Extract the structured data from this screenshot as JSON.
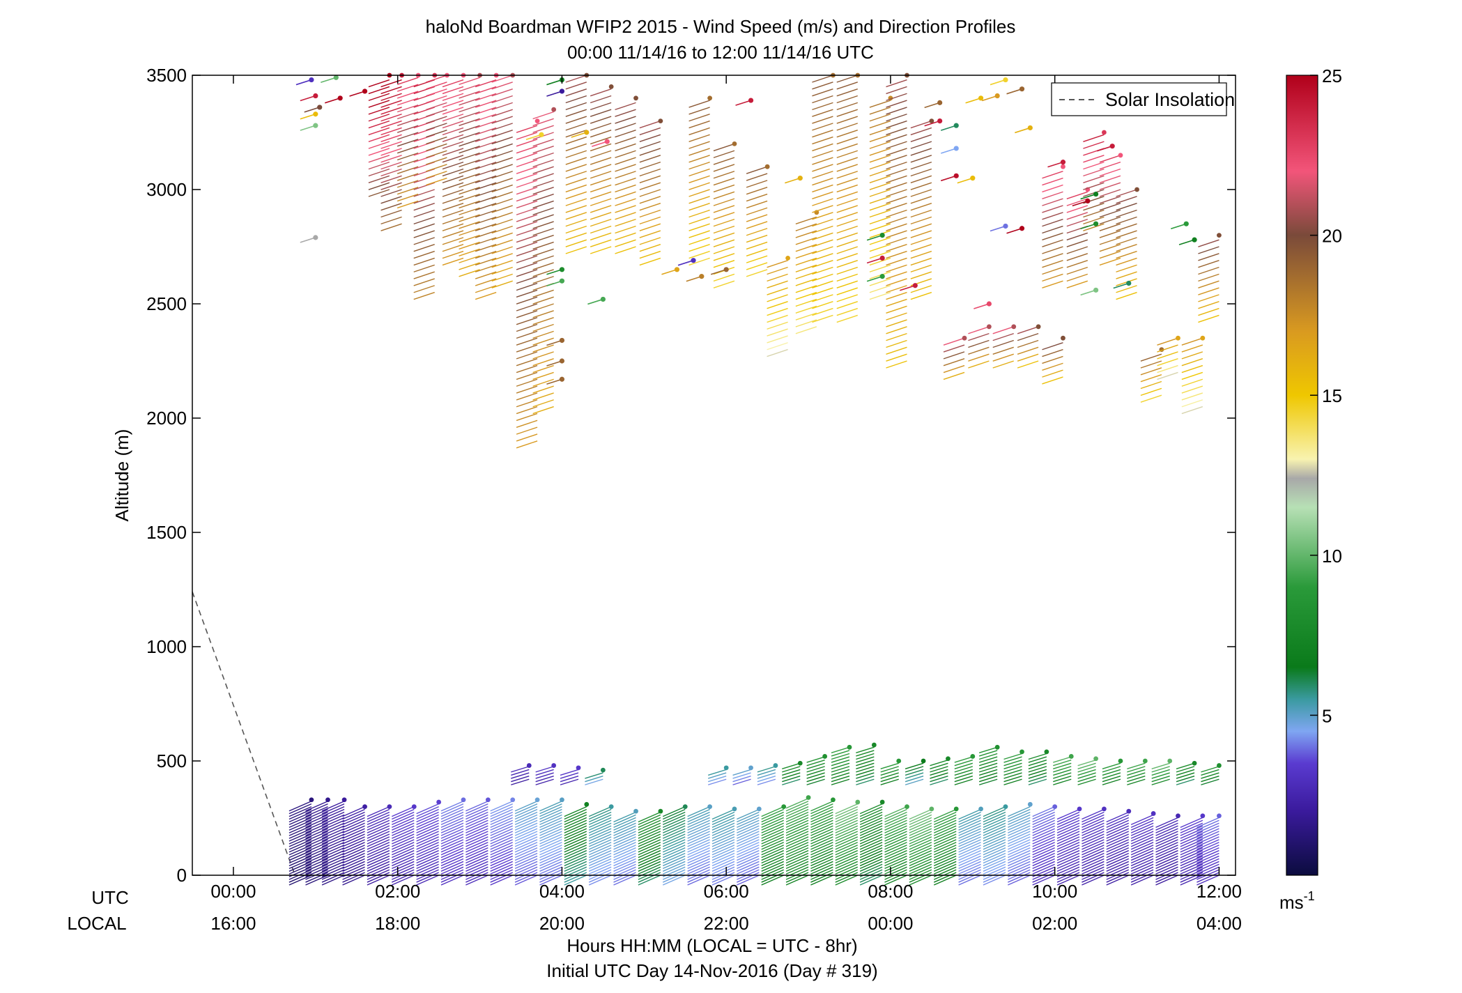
{
  "chart_data": {
    "type": "wind-barb-profile",
    "title": "haloNd Boardman WFIP2 2015 - Wind Speed (m/s) and Direction Profiles",
    "subtitle": "00:00 11/14/16 to 12:00 11/14/16  UTC",
    "ylabel": "Altitude (m)",
    "xlabel": "Hours HH:MM  (LOCAL = UTC - 8hr)",
    "xlabel2": "Initial UTC Day 14-Nov-2016 (Day # 319)",
    "utc_row_label": "UTC",
    "local_row_label": "LOCAL",
    "xlim_hours": [
      -0.5,
      12.2
    ],
    "ylim": [
      0,
      3500
    ],
    "yticks": [
      0,
      500,
      1000,
      1500,
      2000,
      2500,
      3000,
      3500
    ],
    "xticks_hours": [
      0,
      2,
      4,
      6,
      8,
      10,
      12
    ],
    "xtick_labels_utc": [
      "00:00",
      "02:00",
      "04:00",
      "06:00",
      "08:00",
      "10:00",
      "12:00"
    ],
    "xtick_labels_local": [
      "16:00",
      "18:00",
      "20:00",
      "22:00",
      "00:00",
      "02:00",
      "04:00"
    ],
    "legend": [
      {
        "name": "Solar Insolation",
        "style": "dashed",
        "color": "#555555"
      }
    ],
    "legend_placement": "top-right",
    "solar_insolation": {
      "x_hours": [
        -0.5,
        0.75
      ],
      "altitude": [
        1240,
        0
      ]
    },
    "colorbar": {
      "min": 0,
      "max": 25,
      "ticks": [
        5,
        10,
        15,
        20,
        25
      ],
      "unit": "ms",
      "unit_exponent": "-1",
      "stops": [
        {
          "v": 0,
          "color": "#0b0c3e"
        },
        {
          "v": 2,
          "color": "#3a1a9c"
        },
        {
          "v": 3.5,
          "color": "#5a3bd0"
        },
        {
          "v": 4.5,
          "color": "#7fa6f2"
        },
        {
          "v": 5.5,
          "color": "#3a9aa0"
        },
        {
          "v": 6.5,
          "color": "#0a7a1a"
        },
        {
          "v": 9,
          "color": "#2a9a3a"
        },
        {
          "v": 11.5,
          "color": "#b7e0b5"
        },
        {
          "v": 12.4,
          "color": "#a8a8a8"
        },
        {
          "v": 13,
          "color": "#f8f3b0"
        },
        {
          "v": 15,
          "color": "#efc700"
        },
        {
          "v": 17,
          "color": "#d99a20"
        },
        {
          "v": 20,
          "color": "#7a4a3a"
        },
        {
          "v": 22,
          "color": "#f2557a"
        },
        {
          "v": 25,
          "color": "#b0001a"
        }
      ]
    },
    "upper_profiles": [
      {
        "t": 1.9,
        "bottom": 3000,
        "top": 3500,
        "speed": 23
      },
      {
        "t": 2.05,
        "bottom": 2850,
        "top": 3500,
        "speed": 22
      },
      {
        "t": 2.25,
        "bottom": 2950,
        "top": 3500,
        "speed": 20
      },
      {
        "t": 2.45,
        "bottom": 2550,
        "top": 3500,
        "speed": 21
      },
      {
        "t": 2.6,
        "bottom": 3050,
        "top": 3500,
        "speed": 20
      },
      {
        "t": 2.8,
        "bottom": 2700,
        "top": 3500,
        "speed": 20
      },
      {
        "t": 3.0,
        "bottom": 2650,
        "top": 3500,
        "speed": 19
      },
      {
        "t": 3.2,
        "bottom": 2550,
        "top": 3500,
        "speed": 20
      },
      {
        "t": 3.4,
        "bottom": 2600,
        "top": 3500,
        "speed": 19
      },
      {
        "t": 3.7,
        "bottom": 1900,
        "top": 3300,
        "speed": 20
      },
      {
        "t": 3.9,
        "bottom": 2050,
        "top": 3350,
        "speed": 19
      },
      {
        "t": 4.3,
        "bottom": 2750,
        "top": 3500,
        "speed": 18
      },
      {
        "t": 4.6,
        "bottom": 2750,
        "top": 3450,
        "speed": 18
      },
      {
        "t": 4.9,
        "bottom": 2750,
        "top": 3400,
        "speed": 18
      },
      {
        "t": 5.2,
        "bottom": 2700,
        "top": 3300,
        "speed": 18
      },
      {
        "t": 5.8,
        "bottom": 2700,
        "top": 3400,
        "speed": 17
      },
      {
        "t": 6.1,
        "bottom": 2600,
        "top": 3200,
        "speed": 17
      },
      {
        "t": 6.5,
        "bottom": 2650,
        "top": 3100,
        "speed": 17
      },
      {
        "t": 6.75,
        "bottom": 2300,
        "top": 2700,
        "speed": 15
      },
      {
        "t": 7.1,
        "bottom": 2400,
        "top": 2900,
        "speed": 16
      },
      {
        "t": 7.3,
        "bottom": 2450,
        "top": 3500,
        "speed": 17
      },
      {
        "t": 7.6,
        "bottom": 2450,
        "top": 3500,
        "speed": 17
      },
      {
        "t": 8.0,
        "bottom": 2550,
        "top": 3400,
        "speed": 16
      },
      {
        "t": 8.2,
        "bottom": 2250,
        "top": 3500,
        "speed": 18
      },
      {
        "t": 8.5,
        "bottom": 2550,
        "top": 3300,
        "speed": 18
      },
      {
        "t": 8.9,
        "bottom": 2200,
        "top": 2350,
        "speed": 19
      },
      {
        "t": 9.2,
        "bottom": 2250,
        "top": 2400,
        "speed": 19
      },
      {
        "t": 9.5,
        "bottom": 2250,
        "top": 2400,
        "speed": 19
      },
      {
        "t": 9.8,
        "bottom": 2250,
        "top": 2400,
        "speed": 18
      },
      {
        "t": 10.1,
        "bottom": 2180,
        "top": 2350,
        "speed": 18
      },
      {
        "t": 10.1,
        "bottom": 2600,
        "top": 3100,
        "speed": 20
      },
      {
        "t": 10.4,
        "bottom": 2600,
        "top": 3000,
        "speed": 20
      },
      {
        "t": 10.6,
        "bottom": 2850,
        "top": 3250,
        "speed": 21
      },
      {
        "t": 10.8,
        "bottom": 2700,
        "top": 3150,
        "speed": 20
      },
      {
        "t": 11.0,
        "bottom": 2550,
        "top": 3000,
        "speed": 18
      },
      {
        "t": 11.3,
        "bottom": 2100,
        "top": 2300,
        "speed": 17
      },
      {
        "t": 11.5,
        "bottom": 2200,
        "top": 2350,
        "speed": 15
      },
      {
        "t": 11.8,
        "bottom": 2050,
        "top": 2350,
        "speed": 15
      },
      {
        "t": 12.0,
        "bottom": 2450,
        "top": 2800,
        "speed": 18
      }
    ],
    "lower_profiles": [
      {
        "t": 0.95,
        "bottom": 0,
        "top": 330,
        "speed": 1.2
      },
      {
        "t": 1.15,
        "bottom": 0,
        "top": 330,
        "speed": 1.5
      },
      {
        "t": 1.35,
        "bottom": 0,
        "top": 330,
        "speed": 1.8
      },
      {
        "t": 1.6,
        "bottom": 0,
        "top": 300,
        "speed": 2.0
      },
      {
        "t": 1.9,
        "bottom": 0,
        "top": 300,
        "speed": 2.5
      },
      {
        "t": 2.2,
        "bottom": 0,
        "top": 300,
        "speed": 3.0
      },
      {
        "t": 2.5,
        "bottom": 0,
        "top": 320,
        "speed": 3.2
      },
      {
        "t": 2.8,
        "bottom": 0,
        "top": 330,
        "speed": 3.6
      },
      {
        "t": 3.1,
        "bottom": 0,
        "top": 330,
        "speed": 3.4
      },
      {
        "t": 3.4,
        "bottom": 0,
        "top": 330,
        "speed": 3.8
      },
      {
        "t": 3.7,
        "bottom": 0,
        "top": 330,
        "speed": 4.4
      },
      {
        "t": 4.0,
        "bottom": 0,
        "top": 330,
        "speed": 4.6
      },
      {
        "t": 4.3,
        "bottom": 0,
        "top": 310,
        "speed": 6.5
      },
      {
        "t": 4.6,
        "bottom": 0,
        "top": 300,
        "speed": 5.0
      },
      {
        "t": 4.9,
        "bottom": 0,
        "top": 280,
        "speed": 4.7
      },
      {
        "t": 5.2,
        "bottom": 0,
        "top": 280,
        "speed": 7.0
      },
      {
        "t": 5.5,
        "bottom": 0,
        "top": 300,
        "speed": 5.5
      },
      {
        "t": 5.8,
        "bottom": 0,
        "top": 300,
        "speed": 4.6
      },
      {
        "t": 6.1,
        "bottom": 0,
        "top": 290,
        "speed": 4.8
      },
      {
        "t": 6.4,
        "bottom": 0,
        "top": 290,
        "speed": 4.5
      },
      {
        "t": 6.7,
        "bottom": 0,
        "top": 300,
        "speed": 8.0
      },
      {
        "t": 7.0,
        "bottom": 0,
        "top": 340,
        "speed": 8.5
      },
      {
        "t": 7.3,
        "bottom": 0,
        "top": 330,
        "speed": 8.0
      },
      {
        "t": 7.6,
        "bottom": 0,
        "top": 320,
        "speed": 9.0
      },
      {
        "t": 7.9,
        "bottom": 0,
        "top": 320,
        "speed": 7.0
      },
      {
        "t": 8.2,
        "bottom": 0,
        "top": 300,
        "speed": 8.5
      },
      {
        "t": 8.5,
        "bottom": 0,
        "top": 290,
        "speed": 9.0
      },
      {
        "t": 8.8,
        "bottom": 0,
        "top": 290,
        "speed": 8.0
      },
      {
        "t": 9.1,
        "bottom": 0,
        "top": 290,
        "speed": 4.7
      },
      {
        "t": 9.4,
        "bottom": 0,
        "top": 300,
        "speed": 5.0
      },
      {
        "t": 9.7,
        "bottom": 0,
        "top": 310,
        "speed": 4.5
      },
      {
        "t": 10.0,
        "bottom": 0,
        "top": 300,
        "speed": 3.5
      },
      {
        "t": 10.3,
        "bottom": 0,
        "top": 290,
        "speed": 3.0
      },
      {
        "t": 10.6,
        "bottom": 0,
        "top": 290,
        "speed": 2.8
      },
      {
        "t": 10.9,
        "bottom": 0,
        "top": 280,
        "speed": 2.6
      },
      {
        "t": 11.2,
        "bottom": 0,
        "top": 270,
        "speed": 2.8
      },
      {
        "t": 11.5,
        "bottom": 0,
        "top": 260,
        "speed": 2.4
      },
      {
        "t": 11.8,
        "bottom": 0,
        "top": 260,
        "speed": 3.0
      },
      {
        "t": 12.0,
        "bottom": 0,
        "top": 260,
        "speed": 3.5
      }
    ],
    "mid_profiles": [
      {
        "t": 3.6,
        "bottom": 420,
        "top": 480,
        "speed": 2.5
      },
      {
        "t": 3.9,
        "bottom": 420,
        "top": 480,
        "speed": 2.8
      },
      {
        "t": 4.2,
        "bottom": 420,
        "top": 470,
        "speed": 3.0
      },
      {
        "t": 4.5,
        "bottom": 420,
        "top": 460,
        "speed": 5.5
      },
      {
        "t": 6.0,
        "bottom": 420,
        "top": 470,
        "speed": 5.0
      },
      {
        "t": 6.3,
        "bottom": 420,
        "top": 470,
        "speed": 4.5
      },
      {
        "t": 6.6,
        "bottom": 420,
        "top": 480,
        "speed": 5.0
      },
      {
        "t": 6.9,
        "bottom": 420,
        "top": 490,
        "speed": 7.0
      },
      {
        "t": 7.2,
        "bottom": 420,
        "top": 520,
        "speed": 7.5
      },
      {
        "t": 7.5,
        "bottom": 420,
        "top": 560,
        "speed": 8.0
      },
      {
        "t": 7.8,
        "bottom": 420,
        "top": 570,
        "speed": 7.0
      },
      {
        "t": 8.1,
        "bottom": 420,
        "top": 500,
        "speed": 8.0
      },
      {
        "t": 8.4,
        "bottom": 420,
        "top": 500,
        "speed": 6.0
      },
      {
        "t": 8.7,
        "bottom": 420,
        "top": 510,
        "speed": 7.0
      },
      {
        "t": 9.0,
        "bottom": 420,
        "top": 520,
        "speed": 8.0
      },
      {
        "t": 9.3,
        "bottom": 420,
        "top": 560,
        "speed": 7.5
      },
      {
        "t": 9.6,
        "bottom": 420,
        "top": 540,
        "speed": 8.0
      },
      {
        "t": 9.9,
        "bottom": 420,
        "top": 540,
        "speed": 7.0
      },
      {
        "t": 10.2,
        "bottom": 420,
        "top": 520,
        "speed": 8.5
      },
      {
        "t": 10.5,
        "bottom": 420,
        "top": 510,
        "speed": 9.0
      },
      {
        "t": 10.8,
        "bottom": 420,
        "top": 500,
        "speed": 8.0
      },
      {
        "t": 11.1,
        "bottom": 420,
        "top": 500,
        "speed": 8.5
      },
      {
        "t": 11.4,
        "bottom": 420,
        "top": 500,
        "speed": 9.0
      },
      {
        "t": 11.7,
        "bottom": 420,
        "top": 490,
        "speed": 7.0
      },
      {
        "t": 12.0,
        "bottom": 420,
        "top": 480,
        "speed": 7.5
      }
    ],
    "scatter_barbs": [
      {
        "t": 0.95,
        "alt": 3480,
        "speed": 3.0
      },
      {
        "t": 1.25,
        "alt": 3490,
        "speed": 10.0
      },
      {
        "t": 1.0,
        "alt": 3410,
        "speed": 24.0
      },
      {
        "t": 1.3,
        "alt": 3400,
        "speed": 25.0
      },
      {
        "t": 1.6,
        "alt": 3430,
        "speed": 25.0
      },
      {
        "t": 1.05,
        "alt": 3360,
        "speed": 20.0
      },
      {
        "t": 1.0,
        "alt": 3330,
        "speed": 15.5
      },
      {
        "t": 1.0,
        "alt": 3280,
        "speed": 10.5
      },
      {
        "t": 1.0,
        "alt": 2790,
        "speed": 12.4
      },
      {
        "t": 3.75,
        "alt": 3240,
        "speed": 14.5
      },
      {
        "t": 4.0,
        "alt": 3480,
        "speed": 7.0
      },
      {
        "t": 4.0,
        "alt": 3430,
        "speed": 2.0
      },
      {
        "t": 4.3,
        "alt": 3250,
        "speed": 16.0
      },
      {
        "t": 4.55,
        "alt": 3210,
        "speed": 22.0
      },
      {
        "t": 4.0,
        "alt": 2650,
        "speed": 8.0
      },
      {
        "t": 4.0,
        "alt": 2600,
        "speed": 9.5
      },
      {
        "t": 4.5,
        "alt": 2520,
        "speed": 9.5
      },
      {
        "t": 4.0,
        "alt": 2340,
        "speed": 19.0
      },
      {
        "t": 4.0,
        "alt": 2250,
        "speed": 19.0
      },
      {
        "t": 4.0,
        "alt": 2170,
        "speed": 19.0
      },
      {
        "t": 5.6,
        "alt": 2690,
        "speed": 3.0
      },
      {
        "t": 5.4,
        "alt": 2650,
        "speed": 16.5
      },
      {
        "t": 5.7,
        "alt": 2620,
        "speed": 18.0
      },
      {
        "t": 6.0,
        "alt": 2650,
        "speed": 19.0
      },
      {
        "t": 6.3,
        "alt": 3390,
        "speed": 24.0
      },
      {
        "t": 6.9,
        "alt": 3050,
        "speed": 16.0
      },
      {
        "t": 7.9,
        "alt": 2800,
        "speed": 8.0
      },
      {
        "t": 7.9,
        "alt": 2700,
        "speed": 24.0
      },
      {
        "t": 7.9,
        "alt": 2620,
        "speed": 9.0
      },
      {
        "t": 8.3,
        "alt": 2580,
        "speed": 24.0
      },
      {
        "t": 8.6,
        "alt": 3300,
        "speed": 24.0
      },
      {
        "t": 8.8,
        "alt": 3280,
        "speed": 6.0
      },
      {
        "t": 8.8,
        "alt": 3180,
        "speed": 4.5
      },
      {
        "t": 8.8,
        "alt": 3060,
        "speed": 24.5
      },
      {
        "t": 8.6,
        "alt": 3380,
        "speed": 19.0
      },
      {
        "t": 9.0,
        "alt": 3050,
        "speed": 15.5
      },
      {
        "t": 9.1,
        "alt": 3400,
        "speed": 15.5
      },
      {
        "t": 9.2,
        "alt": 2500,
        "speed": 22.5
      },
      {
        "t": 9.4,
        "alt": 3480,
        "speed": 14.5
      },
      {
        "t": 9.3,
        "alt": 3410,
        "speed": 17.0
      },
      {
        "t": 9.6,
        "alt": 3440,
        "speed": 19.0
      },
      {
        "t": 9.4,
        "alt": 2840,
        "speed": 4.0
      },
      {
        "t": 9.6,
        "alt": 2830,
        "speed": 25.0
      },
      {
        "t": 9.7,
        "alt": 3270,
        "speed": 16.0
      },
      {
        "t": 10.1,
        "alt": 3120,
        "speed": 24.0
      },
      {
        "t": 10.4,
        "alt": 2950,
        "speed": 25.0
      },
      {
        "t": 10.5,
        "alt": 2980,
        "speed": 7.0
      },
      {
        "t": 10.5,
        "alt": 2850,
        "speed": 8.0
      },
      {
        "t": 10.5,
        "alt": 2560,
        "speed": 10.5
      },
      {
        "t": 10.7,
        "alt": 3190,
        "speed": 24.0
      },
      {
        "t": 10.9,
        "alt": 2590,
        "speed": 6.0
      },
      {
        "t": 11.6,
        "alt": 2850,
        "speed": 9.0
      },
      {
        "t": 11.7,
        "alt": 2780,
        "speed": 7.0
      }
    ]
  }
}
